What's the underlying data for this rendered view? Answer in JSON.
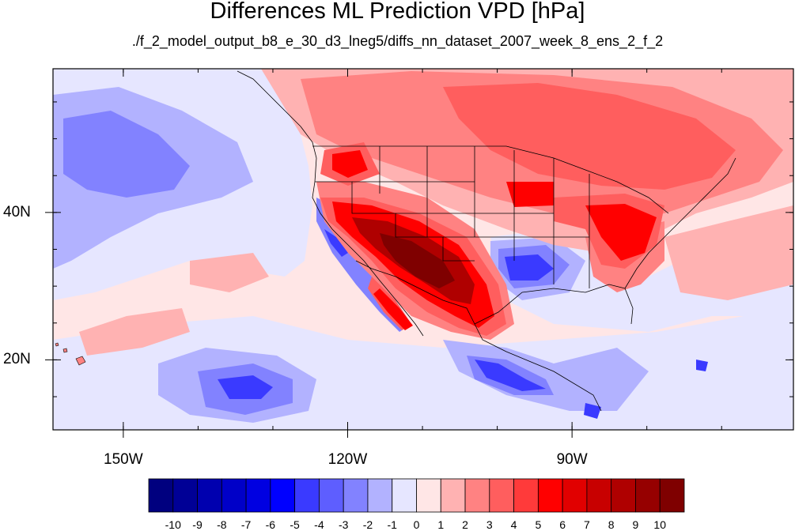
{
  "title": "Differences ML Prediction VPD [hPa]",
  "subtitle": "./f_2_model_output_b8_e_30_d3_lneg5/diffs_nn_dataset_2007_week_8_ens_2_f_2",
  "axes": {
    "x_ticks": [
      {
        "lon": -150,
        "label": "150W"
      },
      {
        "lon": -120,
        "label": "120W"
      },
      {
        "lon": -90,
        "label": "90W"
      }
    ],
    "y_ticks": [
      {
        "lat": 40,
        "label": "40N"
      },
      {
        "lat": 20,
        "label": "20N"
      }
    ],
    "lon_range": [
      -159.4,
      -60.4
    ],
    "lat_range": [
      10.5,
      59.5
    ]
  },
  "colorbar": {
    "labels": [
      "-10",
      "-9",
      "-8",
      "-7",
      "-6",
      "-5",
      "-4",
      "-3",
      "-2",
      "-1",
      "0",
      "1",
      "2",
      "3",
      "4",
      "5",
      "6",
      "7",
      "8",
      "9",
      "10"
    ],
    "colors": [
      "#00007f",
      "#000096",
      "#0000af",
      "#0000c8",
      "#0000e1",
      "#0000ff",
      "#3a3aff",
      "#5e5eff",
      "#8282ff",
      "#b2b2ff",
      "#e6e6ff",
      "#ffe6e6",
      "#ffb2b2",
      "#ff8282",
      "#ff5e5e",
      "#ff3a3a",
      "#ff0000",
      "#e10000",
      "#c80000",
      "#af0000",
      "#960000",
      "#7f0000"
    ]
  },
  "map_features": {
    "blue_regions": [
      "eastern Pacific west of 140W",
      "California coast and Baja",
      "Texas and Louisiana Gulf coast",
      "southern Mexico",
      "Central America",
      "tropical Pacific 10-20N"
    ],
    "red_regions": [
      "Southwest US and northern Mexico (maximum)",
      "Pacific Northwest",
      "central and eastern Canada",
      "Ohio Valley and Mid-Atlantic",
      "western Atlantic"
    ]
  }
}
